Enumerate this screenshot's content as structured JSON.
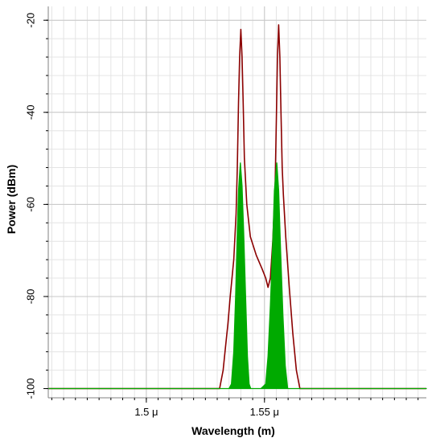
{
  "chart_data": {
    "type": "line",
    "xlabel": "Wavelength (m)",
    "ylabel": "Power (dBm)",
    "xlim": [
      1.4585,
      1.6185
    ],
    "ylim": [
      -102,
      -17
    ],
    "x_ticks": [
      {
        "value": 1.5,
        "label": "1.5 μ"
      },
      {
        "value": 1.55,
        "label": "1.55 μ"
      }
    ],
    "y_ticks": [
      {
        "value": -20,
        "label": "-20"
      },
      {
        "value": -40,
        "label": "-40"
      },
      {
        "value": -60,
        "label": "-60"
      },
      {
        "value": -80,
        "label": "-80"
      },
      {
        "value": -100,
        "label": "-100"
      }
    ],
    "grid": true,
    "series": [
      {
        "color": "#8b0000",
        "style": "line",
        "points": [
          [
            1.4585,
            -100
          ],
          [
            1.531,
            -100
          ],
          [
            1.5325,
            -96
          ],
          [
            1.5335,
            -91
          ],
          [
            1.5345,
            -86
          ],
          [
            1.5355,
            -80
          ],
          [
            1.537,
            -72
          ],
          [
            1.538,
            -62
          ],
          [
            1.5385,
            -52
          ],
          [
            1.539,
            -38
          ],
          [
            1.5395,
            -28
          ],
          [
            1.54,
            -22
          ],
          [
            1.5405,
            -28
          ],
          [
            1.541,
            -38
          ],
          [
            1.5415,
            -50
          ],
          [
            1.5425,
            -60
          ],
          [
            1.544,
            -67
          ],
          [
            1.5465,
            -71
          ],
          [
            1.549,
            -74
          ],
          [
            1.5505,
            -76
          ],
          [
            1.5515,
            -78
          ],
          [
            1.5525,
            -76
          ],
          [
            1.5535,
            -68
          ],
          [
            1.5545,
            -56
          ],
          [
            1.555,
            -42
          ],
          [
            1.5555,
            -28
          ],
          [
            1.556,
            -21
          ],
          [
            1.5565,
            -28
          ],
          [
            1.557,
            -40
          ],
          [
            1.5575,
            -52
          ],
          [
            1.558,
            -58
          ],
          [
            1.559,
            -67
          ],
          [
            1.5605,
            -78
          ],
          [
            1.562,
            -88
          ],
          [
            1.5635,
            -96
          ],
          [
            1.565,
            -100
          ],
          [
            1.6185,
            -100
          ]
        ]
      },
      {
        "color": "#00aa00",
        "style": "filled",
        "points": [
          [
            1.4585,
            -100
          ],
          [
            1.535,
            -100
          ],
          [
            1.536,
            -99
          ],
          [
            1.537,
            -92
          ],
          [
            1.5378,
            -80
          ],
          [
            1.5385,
            -66
          ],
          [
            1.539,
            -57
          ],
          [
            1.5398,
            -51
          ],
          [
            1.5405,
            -56
          ],
          [
            1.5412,
            -66
          ],
          [
            1.542,
            -80
          ],
          [
            1.5428,
            -93
          ],
          [
            1.5435,
            -99
          ],
          [
            1.5442,
            -100
          ],
          [
            1.5485,
            -100
          ],
          [
            1.5505,
            -99
          ],
          [
            1.5515,
            -93
          ],
          [
            1.5525,
            -82
          ],
          [
            1.5535,
            -68
          ],
          [
            1.5542,
            -57
          ],
          [
            1.5552,
            -51
          ],
          [
            1.556,
            -57
          ],
          [
            1.5568,
            -70
          ],
          [
            1.5578,
            -84
          ],
          [
            1.5588,
            -95
          ],
          [
            1.5598,
            -100
          ],
          [
            1.6185,
            -100
          ]
        ]
      }
    ]
  }
}
